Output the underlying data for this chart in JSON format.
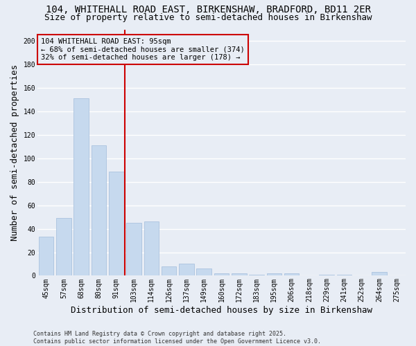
{
  "title_line1": "104, WHITEHALL ROAD EAST, BIRKENSHAW, BRADFORD, BD11 2ER",
  "title_line2": "Size of property relative to semi-detached houses in Birkenshaw",
  "xlabel": "Distribution of semi-detached houses by size in Birkenshaw",
  "ylabel": "Number of semi-detached properties",
  "categories": [
    "45sqm",
    "57sqm",
    "68sqm",
    "80sqm",
    "91sqm",
    "103sqm",
    "114sqm",
    "126sqm",
    "137sqm",
    "149sqm",
    "160sqm",
    "172sqm",
    "183sqm",
    "195sqm",
    "206sqm",
    "218sqm",
    "229sqm",
    "241sqm",
    "252sqm",
    "264sqm",
    "275sqm"
  ],
  "values": [
    33,
    49,
    151,
    111,
    89,
    45,
    46,
    8,
    10,
    6,
    2,
    2,
    1,
    2,
    2,
    0,
    1,
    1,
    0,
    3,
    0
  ],
  "bar_color": "#c6d9ee",
  "bar_edgecolor": "#aac2de",
  "grid_color": "#ffffff",
  "bg_color": "#e8edf5",
  "vline_x": 4.5,
  "vline_color": "#cc0000",
  "annotation_text": "104 WHITEHALL ROAD EAST: 95sqm\n← 68% of semi-detached houses are smaller (374)\n32% of semi-detached houses are larger (178) →",
  "annotation_box_edgecolor": "#cc0000",
  "ylim": [
    0,
    210
  ],
  "yticks": [
    0,
    20,
    40,
    60,
    80,
    100,
    120,
    140,
    160,
    180,
    200
  ],
  "footnote": "Contains HM Land Registry data © Crown copyright and database right 2025.\nContains public sector information licensed under the Open Government Licence v3.0.",
  "title_fontsize": 10,
  "subtitle_fontsize": 9,
  "axis_label_fontsize": 9,
  "tick_fontsize": 7,
  "annotation_fontsize": 7.5,
  "footnote_fontsize": 6
}
